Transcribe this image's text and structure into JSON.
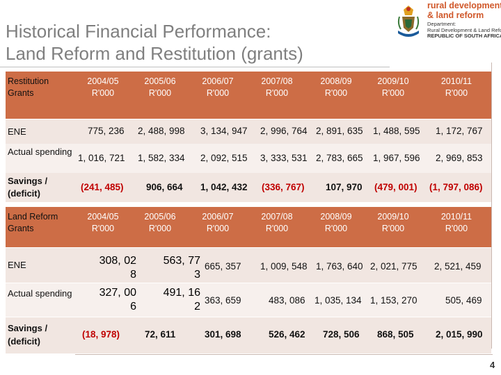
{
  "title": {
    "line1": "Historical Financial Performance:",
    "line2": "Land Reform and Restitution (grants)"
  },
  "logo": {
    "line1": "rural development",
    "line2": "& land reform",
    "dept1": "Department:",
    "dept2": "Rural Development & Land Reform",
    "dept3": "REPUBLIC OF SOUTH AFRICA"
  },
  "restitution": {
    "header": "Restitution Grants",
    "years": [
      {
        "year": "2004/05",
        "unit": "R'000"
      },
      {
        "year": "2005/06",
        "unit": "R'000"
      },
      {
        "year": "2006/07",
        "unit": "R'000"
      },
      {
        "year": "2007/08",
        "unit": "R'000"
      },
      {
        "year": "2008/09",
        "unit": "R'000"
      },
      {
        "year": "2009/10",
        "unit": "R'000"
      },
      {
        "year": "2010/11",
        "unit": "R'000"
      }
    ],
    "rows": [
      {
        "label": "ENE",
        "values": [
          "775, 236",
          "2, 488, 998",
          "3, 134, 947",
          "2, 996, 764",
          "2, 891, 635",
          "1, 488, 595",
          "1, 172, 767"
        ]
      },
      {
        "label": "Actual spending",
        "values": [
          "1, 016, 721",
          "1, 582, 334",
          "2, 092, 515",
          "3, 333, 531",
          "2, 783, 665",
          "1, 967, 596",
          "2, 969, 853"
        ]
      },
      {
        "label": "Savings / (deficit)",
        "values": [
          "(241, 485)",
          "906, 664",
          "1, 042, 432",
          "(336, 767)",
          "107, 970",
          "(479, 001)",
          "(1, 797, 086)"
        ]
      }
    ]
  },
  "land_reform": {
    "header": "Land Reform Grants",
    "years": [
      {
        "year": "2004/05",
        "unit": "R'000"
      },
      {
        "year": "2005/06",
        "unit": "R'000"
      },
      {
        "year": "2006/07",
        "unit": "R'000"
      },
      {
        "year": "2007/08",
        "unit": "R'000"
      },
      {
        "year": "2008/09",
        "unit": "R'000"
      },
      {
        "year": "2009/10",
        "unit": "R'000"
      },
      {
        "year": "2010/11",
        "unit": "R'000"
      }
    ],
    "ene": {
      "label": "ENE",
      "v1_line1": "308, 02",
      "v1_line2": "8",
      "v2_line1": "563, 77",
      "v2_line2": "3",
      "v3": "665, 357",
      "v4": "1, 009, 548",
      "v5": "1, 763, 640",
      "v6": "2, 021, 775",
      "v7": "2, 521, 459"
    },
    "actual": {
      "label": "Actual spending",
      "v1_line1": "327, 00",
      "v1_line2": "6",
      "v2_line1": "491, 16",
      "v2_line2": "2",
      "v3": "363, 659",
      "v4": "483, 086",
      "v5": "1, 035, 134",
      "v6": "1, 153, 270",
      "v7": "505, 469"
    },
    "savings": {
      "label": "Savings / (deficit)",
      "values": [
        "(18, 978)",
        "72, 611",
        "301, 698",
        "526, 462",
        "728, 506",
        "868, 505",
        "2, 015, 990"
      ]
    }
  },
  "page_number": "4"
}
